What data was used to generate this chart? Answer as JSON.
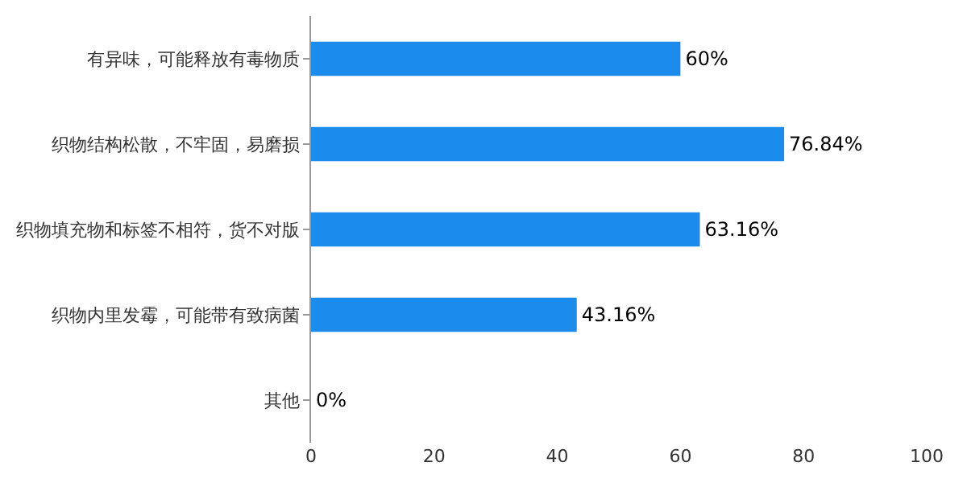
{
  "chart_data": {
    "type": "bar",
    "orientation": "horizontal",
    "categories": [
      "有异味，可能释放有毒物质",
      "织物结构松散，不牢固，易磨损",
      "织物填充物和标签不相符，货不对版",
      "织物内里发霉，可能带有致病菌",
      "其他"
    ],
    "values": [
      60,
      76.84,
      63.16,
      43.16,
      0
    ],
    "value_labels": [
      "60%",
      "76.84%",
      "63.16%",
      "43.16%",
      "0%"
    ],
    "color": "#1b8ceb",
    "xlim": [
      0,
      100
    ],
    "xticks": [
      0,
      20,
      40,
      60,
      80,
      100
    ]
  }
}
